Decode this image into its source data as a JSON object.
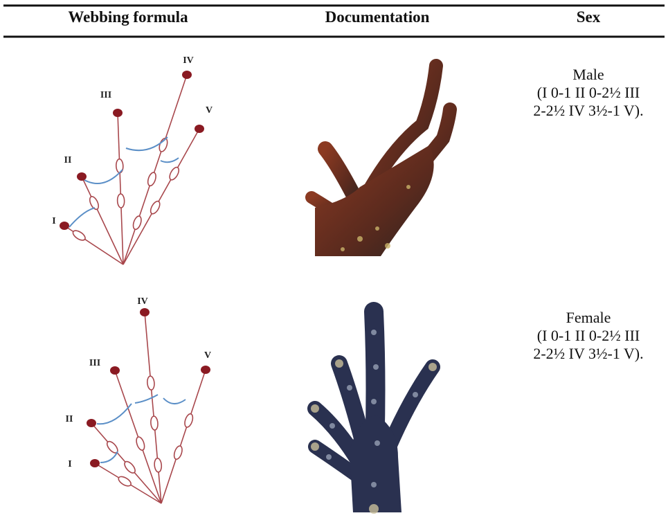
{
  "table": {
    "headers": [
      "Webbing formula",
      "Documentation",
      "Sex"
    ],
    "rows": [
      {
        "diagram_labels": [
          "I",
          "II",
          "III",
          "IV",
          "V"
        ],
        "sex": "Male",
        "formula": "(I 0-1 II 0-2½ III 2-2½ IV 3½-1 V)."
      },
      {
        "diagram_labels": [
          "I",
          "II",
          "III",
          "IV",
          "V"
        ],
        "sex": "Female",
        "formula": "(I 0-1 II 0-2½ III 2-2½ IV 3½-1 V)."
      }
    ]
  }
}
